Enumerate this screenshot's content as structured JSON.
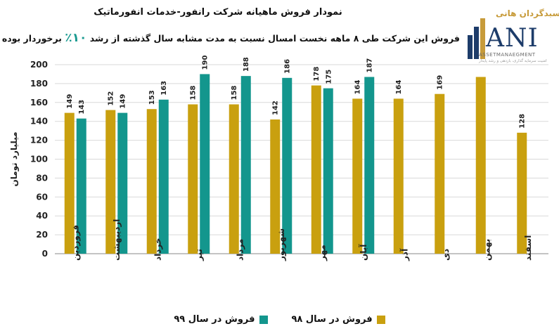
{
  "title": "نمودار فروش ماهیانه شرکت رانفور-خدمات انفورماتیک",
  "subtitle_pre": "فروش این شرکت طی ۸ ماهه نخست امسال نسبت به مدت مشابه سال گذشته از رشد",
  "subtitle_pct": "۱۰٪",
  "subtitle_post": "برخوردار بوده است.",
  "logo": {
    "title": "سبدگردان هانی",
    "mark": "ANI",
    "sub": "ASSETMANAEGMENT",
    "small": "امنیت سرمایه گذاری، بازدهی و رشد پایدار"
  },
  "colors": {
    "series_98": "#c9a00f",
    "series_99": "#13968d"
  },
  "chart_data": {
    "type": "bar",
    "ylabel": "میلیارد تومان",
    "ylim": [
      0,
      200
    ],
    "yticks": [
      0,
      20,
      40,
      60,
      80,
      100,
      120,
      140,
      160,
      180,
      200
    ],
    "categories": [
      "فروردین",
      "اردیبهشت",
      "خرداد",
      "تیر",
      "مرداد",
      "شهریور",
      "مهر",
      "آبان",
      "آذر",
      "دی",
      "بهمن",
      "اسفند"
    ],
    "series": [
      {
        "name": "فروش در سال ۹۸",
        "values": [
          149,
          152,
          153,
          158,
          158,
          142,
          178,
          164,
          164,
          169,
          187,
          128
        ],
        "labels": [
          "149",
          "152",
          "153",
          "158",
          "158",
          "142",
          "178",
          "164",
          "164",
          "169",
          "",
          "128"
        ]
      },
      {
        "name": "فروش در سال ۹۹",
        "values": [
          143,
          149,
          163,
          190,
          188,
          186,
          175,
          187,
          null,
          null,
          null,
          null
        ],
        "labels": [
          "143",
          "149",
          "163",
          "190",
          "188",
          "186",
          "175",
          "187",
          "",
          "",
          "",
          ""
        ]
      }
    ],
    "grid": "horizontal",
    "legend": "bottom"
  }
}
